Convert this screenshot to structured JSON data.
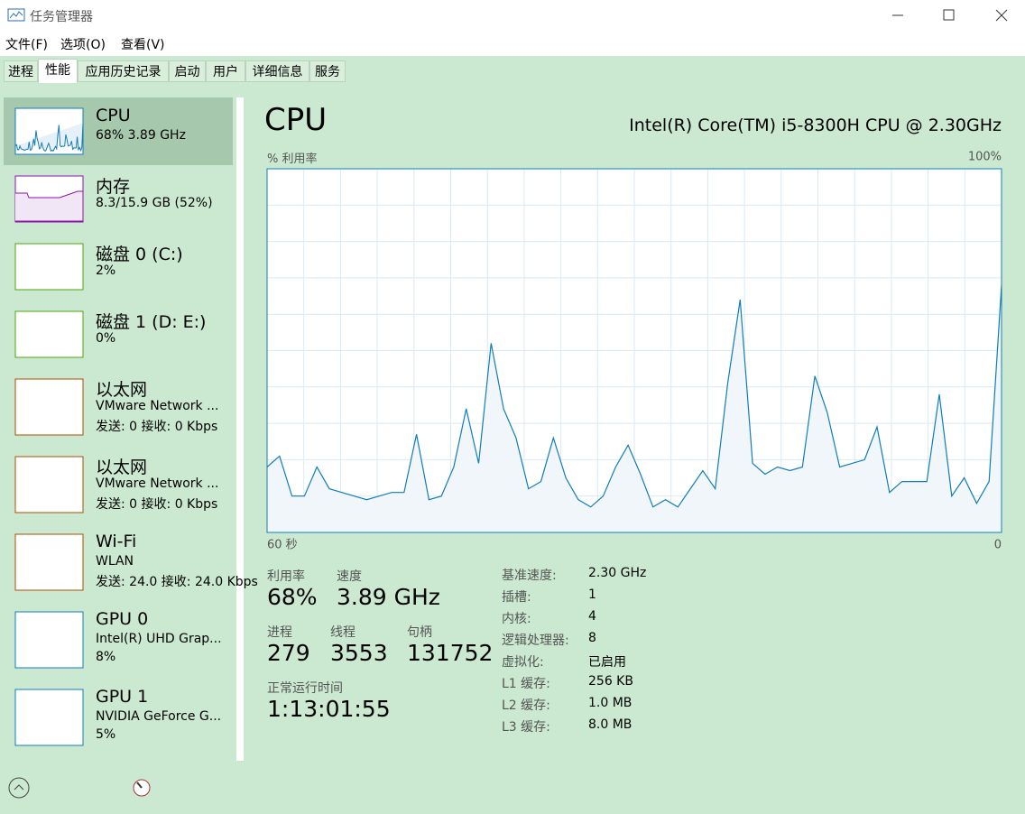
{
  "window": {
    "title": "任务管理器"
  },
  "menu": [
    "文件(F)",
    "选项(O)",
    "查看(V)"
  ],
  "tabs": [
    "进程",
    "性能",
    "应用历史记录",
    "启动",
    "用户",
    "详细信息",
    "服务"
  ],
  "sidebar": [
    {
      "name": "CPU",
      "lines": [
        "68% 3.89 GHz"
      ]
    },
    {
      "name": "内存",
      "lines": [
        "8.3/15.9 GB (52%)"
      ]
    },
    {
      "name": "磁盘 0 (C:)",
      "lines": [
        "2%"
      ]
    },
    {
      "name": "磁盘 1 (D: E:)",
      "lines": [
        "0%"
      ]
    },
    {
      "name": "以太网",
      "lines": [
        "VMware Network ...",
        "发送: 0 接收: 0 Kbps"
      ]
    },
    {
      "name": "以太网",
      "lines": [
        "VMware Network ...",
        "发送: 0 接收: 0 Kbps"
      ]
    },
    {
      "name": "Wi-Fi",
      "lines": [
        "WLAN",
        "发送: 24.0 接收: 24.0 Kbps"
      ]
    },
    {
      "name": "GPU 0",
      "lines": [
        "Intel(R) UHD Grap...",
        "8%"
      ]
    },
    {
      "name": "GPU 1",
      "lines": [
        "NVIDIA GeForce G...",
        "5%"
      ]
    }
  ],
  "main": {
    "title": "CPU",
    "model": "Intel(R) Core(TM) i5-8300H CPU @ 2.30GHz",
    "stats": [
      {
        "label": "利用率",
        "value": "68%"
      },
      {
        "label": "速度",
        "value": "3.89 GHz"
      },
      {
        "label": "进程",
        "value": "279"
      },
      {
        "label": "线程",
        "value": "3553"
      },
      {
        "label": "句柄",
        "value": "131752"
      },
      {
        "label": "正常运行时间",
        "value": "1:13:01:55"
      }
    ],
    "specs": [
      {
        "label": "基准速度:",
        "value": "2.30 GHz"
      },
      {
        "label": "插槽:",
        "value": "1"
      },
      {
        "label": "内核:",
        "value": "4"
      },
      {
        "label": "逻辑处理器:",
        "value": "8"
      },
      {
        "label": "虚拟化:",
        "value": "已启用"
      },
      {
        "label": "L1 缓存:",
        "value": "256 KB"
      },
      {
        "label": "L2 缓存:",
        "value": "1.0 MB"
      },
      {
        "label": "L3 缓存:",
        "value": "8.0 MB"
      }
    ]
  },
  "chart_data": {
    "type": "area",
    "y_label": "% 利用率",
    "color": "#117dbb",
    "ylim": [
      0,
      100
    ],
    "yticks": [
      {
        "value": 100,
        "label": "100%"
      }
    ],
    "xticks": [
      {
        "value": 60,
        "label": "60 秒"
      },
      0
    ],
    "xlim": [
      60,
      0
    ],
    "values": [
      18,
      21,
      10,
      10,
      18,
      12,
      11,
      10,
      9,
      10,
      11,
      11,
      27,
      9,
      10,
      18,
      34,
      19,
      52,
      34,
      26,
      12,
      14,
      26,
      15,
      9,
      7,
      10,
      18,
      24,
      16,
      7,
      9,
      7,
      12,
      17,
      12,
      41,
      64,
      19,
      16,
      18,
      17,
      18,
      43,
      33,
      18,
      19,
      20,
      29,
      11,
      14,
      14,
      14,
      38,
      10,
      15,
      8,
      14,
      68
    ]
  }
}
